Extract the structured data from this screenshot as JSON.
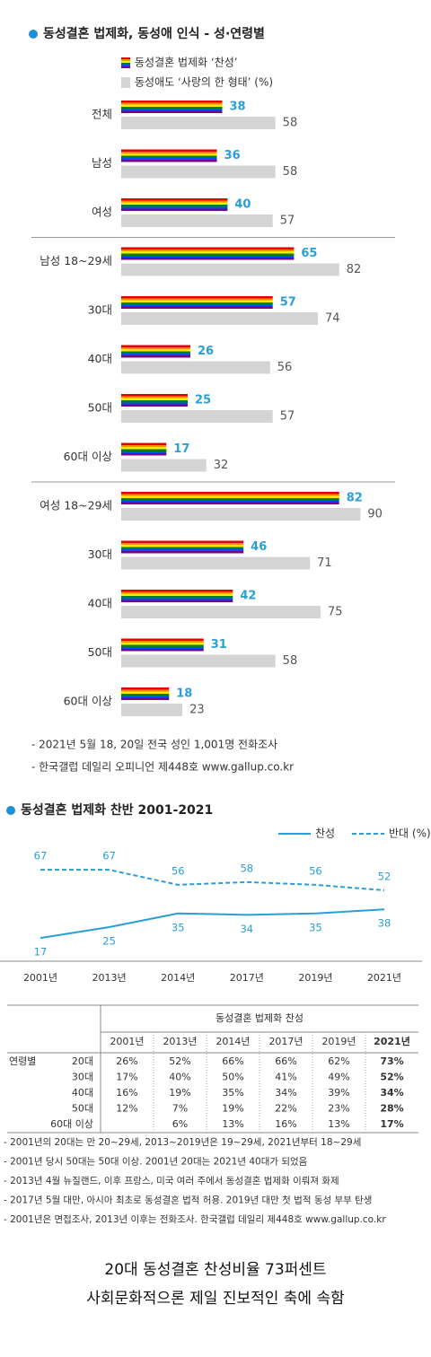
{
  "chart_data": [
    {
      "type": "bar",
      "orientation": "horizontal",
      "title": "동성결혼 법제화, 동성애 인식 - 성·연령별",
      "categories": [
        "전체",
        "남성",
        "여성",
        "남성 18~29세",
        "30대",
        "40대",
        "50대",
        "60대 이상",
        "여성 18~29세",
        "30대",
        "40대",
        "50대",
        "60대 이상"
      ],
      "series": [
        {
          "name": "동성결혼 법제화 ‘찬성’",
          "colors": [
            "#e40303",
            "#ff8c00",
            "#ffed00",
            "#008026",
            "#004dff",
            "#750787"
          ],
          "values": [
            38,
            36,
            40,
            65,
            57,
            26,
            25,
            17,
            82,
            46,
            42,
            31,
            18
          ]
        },
        {
          "name": "동성애도 ‘사랑의 한 형태’ (%)",
          "color": "#d4d4d4",
          "values": [
            58,
            58,
            57,
            82,
            74,
            56,
            57,
            32,
            90,
            71,
            75,
            58,
            23
          ]
        }
      ],
      "notes": [
        "- 2021년 5월 18, 20일 전국 성인 1,001명 전화조사",
        "- 한국갤럽 데일리 오피니언 제448호 www.gallup.co.kr"
      ]
    },
    {
      "type": "line",
      "title": "동성결혼 법제화 찬반 2001-2021",
      "categories": [
        "2001년",
        "2013년",
        "2014년",
        "2017년",
        "2019년",
        "2021년"
      ],
      "series": [
        {
          "name": "찬성",
          "color": "#2a9fd6",
          "dash": false,
          "values": [
            17,
            25,
            35,
            34,
            35,
            38
          ]
        },
        {
          "name": "반대 (%)",
          "color": "#2a9fd6",
          "dash": true,
          "values": [
            67,
            67,
            56,
            58,
            56,
            52
          ]
        }
      ]
    }
  ],
  "table": {
    "title": "동성결혼 법제화 찬성",
    "columns": [
      "2001년",
      "2013년",
      "2014년",
      "2017년",
      "2019년",
      "2021년"
    ],
    "row_group": "연령별",
    "rows": [
      {
        "label": "20대",
        "cells": [
          "26%",
          "52%",
          "66%",
          "66%",
          "62%",
          "73%"
        ]
      },
      {
        "label": "30대",
        "cells": [
          "17%",
          "40%",
          "50%",
          "41%",
          "49%",
          "52%"
        ]
      },
      {
        "label": "40대",
        "cells": [
          "16%",
          "19%",
          "35%",
          "34%",
          "39%",
          "34%"
        ]
      },
      {
        "label": "50대",
        "cells": [
          "12%",
          "7%",
          "19%",
          "22%",
          "23%",
          "28%"
        ]
      },
      {
        "label": "60대 이상",
        "cells": [
          null,
          "6%",
          "13%",
          "16%",
          "13%",
          "17%"
        ]
      }
    ],
    "notes": [
      "- 2001년의 20대는 만 20~29세, 2013~2019년은 19~29세, 2021년부터 18~29세",
      "- 2001년 당시 50대는 50대 이상. 2001년 20대는 2021년 40대가 되었음",
      "- 2013년 4월 뉴질랜드, 이후 프랑스, 미국 여러 주에서 동성결혼 법제화 이뤄져 화제",
      "- 2017년 5월 대만, 아시아 최초로 동성결혼 법적 허용. 2019년 대만 첫 법적 동성 부부 탄생",
      "- 2001년은 면접조사, 2013년 이후는 전화조사. 한국갤럽 데일리 제448호 www.gallup.co.kr"
    ]
  },
  "caption": [
    "20대 동성결혼 찬성비율 73퍼센트",
    "사회문화적으론 제일 진보적인 축에 속함"
  ]
}
